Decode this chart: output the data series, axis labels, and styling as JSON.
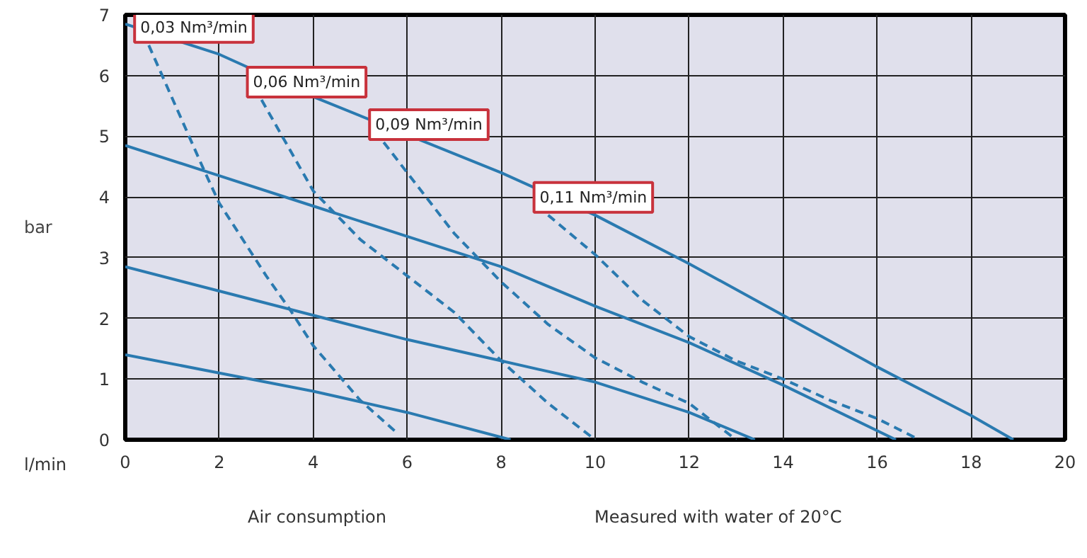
{
  "chart_data": {
    "type": "line",
    "xlabel": "l/min",
    "ylabel": "bar",
    "xlim": [
      0,
      20
    ],
    "ylim": [
      0,
      7
    ],
    "xticks": [
      0,
      2,
      4,
      6,
      8,
      10,
      12,
      14,
      16,
      18,
      20
    ],
    "yticks": [
      0,
      1,
      2,
      3,
      4,
      5,
      6,
      7
    ],
    "grid": true,
    "marker": "none",
    "series": [
      {
        "color": "#2a7ab0",
        "line_style": "solid",
        "x": [
          0,
          2,
          4,
          6,
          8.2
        ],
        "values": [
          1.4,
          1.1,
          0.8,
          0.45,
          0
        ]
      },
      {
        "color": "#2a7ab0",
        "line_style": "solid",
        "x": [
          0,
          2,
          4,
          6,
          8,
          10,
          12,
          13.4
        ],
        "values": [
          2.85,
          2.45,
          2.05,
          1.65,
          1.3,
          0.95,
          0.45,
          0
        ]
      },
      {
        "color": "#2a7ab0",
        "line_style": "solid",
        "x": [
          0,
          2,
          4,
          6,
          8,
          10,
          12,
          14,
          16.4
        ],
        "values": [
          4.85,
          4.35,
          3.85,
          3.35,
          2.85,
          2.2,
          1.6,
          0.9,
          0
        ]
      },
      {
        "color": "#2a7ab0",
        "line_style": "solid",
        "x": [
          0,
          2,
          4,
          8,
          10,
          12,
          14,
          16,
          18,
          18.9
        ],
        "values": [
          6.85,
          6.35,
          5.65,
          4.4,
          3.7,
          2.9,
          2.05,
          1.2,
          0.4,
          0
        ]
      },
      {
        "name": "0,03 Nm³/min",
        "color": "#2a7ab0",
        "line_style": "dashed",
        "x": [
          0.5,
          1.7,
          2,
          3,
          3.5,
          4,
          5,
          5.8
        ],
        "values": [
          6.5,
          4.4,
          3.9,
          2.7,
          2.15,
          1.55,
          0.65,
          0.1
        ]
      },
      {
        "name": "0,06 Nm³/min",
        "color": "#2a7ab0",
        "line_style": "dashed",
        "x": [
          2.9,
          4,
          5,
          6,
          7,
          8,
          9,
          10
        ],
        "values": [
          5.6,
          4.1,
          3.3,
          2.7,
          2.1,
          1.3,
          0.6,
          0
        ]
      },
      {
        "name": "0,09 Nm³/min",
        "color": "#2a7ab0",
        "line_style": "dashed",
        "x": [
          5.5,
          6,
          7,
          8,
          9,
          10,
          11,
          12,
          13
        ],
        "values": [
          4.9,
          4.4,
          3.4,
          2.6,
          1.9,
          1.35,
          0.95,
          0.6,
          0
        ]
      },
      {
        "name": "0,11 Nm³/min",
        "color": "#2a7ab0",
        "line_style": "dashed",
        "x": [
          9,
          10,
          11,
          12,
          13,
          14,
          15,
          16,
          16.9
        ],
        "values": [
          3.7,
          3.05,
          2.3,
          1.7,
          1.3,
          1.0,
          0.65,
          0.35,
          0
        ]
      }
    ],
    "annotations": [
      "Air consumption",
      "Measured with water of 20°C"
    ]
  }
}
